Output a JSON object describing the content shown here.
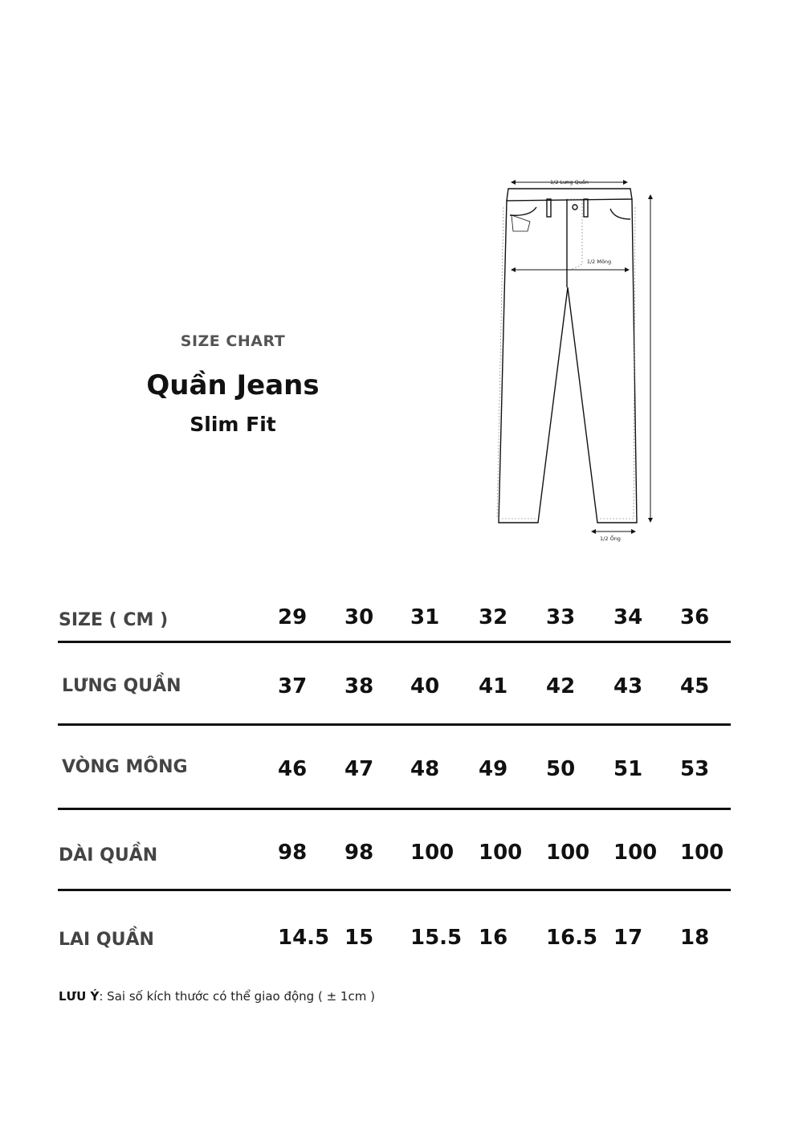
{
  "header": {
    "kicker": "SIZE CHART",
    "title": "Quần Jeans",
    "subtitle": "Slim Fit"
  },
  "diagram": {
    "waist_label": "1/2 Lưng Quần",
    "hip_label": "1/2 Mông",
    "hem_label": "1/2 Ống"
  },
  "table": {
    "header_label": "SIZE ( CM )",
    "sizes": [
      "29",
      "30",
      "31",
      "32",
      "33",
      "34",
      "36"
    ],
    "rows": [
      {
        "label": "LƯNG QUẦN",
        "values": [
          "37",
          "38",
          "40",
          "41",
          "42",
          "43",
          "45"
        ]
      },
      {
        "label": "VÒNG MÔNG",
        "values": [
          "46",
          "47",
          "48",
          "49",
          "50",
          "51",
          "53"
        ]
      },
      {
        "label": "DÀI QUẦN",
        "values": [
          "98",
          "98",
          "100",
          "100",
          "100",
          "100",
          "100"
        ]
      },
      {
        "label": "LAI QUẦN",
        "values": [
          "14.5",
          "15",
          "15.5",
          "16",
          "16.5",
          "17",
          "18"
        ]
      }
    ]
  },
  "note": {
    "label": "LƯU Ý",
    "text": ": Sai số kích thước có thể giao động ( ± 1cm )"
  }
}
